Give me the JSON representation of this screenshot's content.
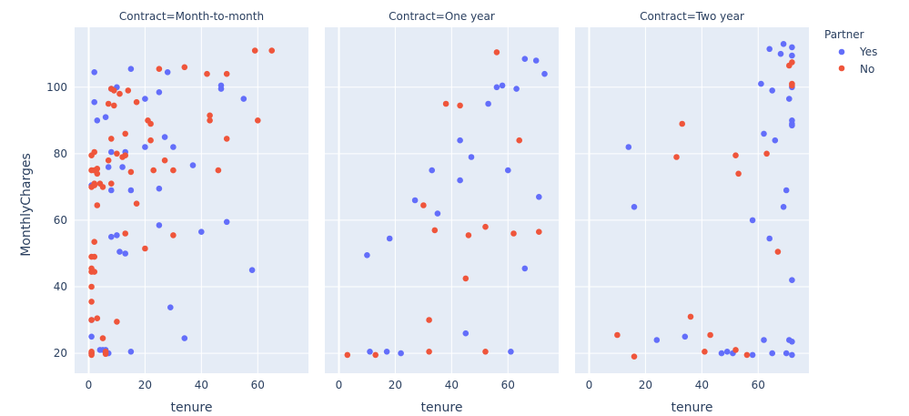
{
  "chart_data": {
    "type": "scatter",
    "xlabel": "tenure",
    "ylabel": "MonthlyCharges",
    "xlim": [
      -5,
      78
    ],
    "ylim": [
      14,
      118
    ],
    "x_ticks": [
      0,
      20,
      40,
      60
    ],
    "y_ticks": [
      20,
      40,
      60,
      80,
      100
    ],
    "grid": true,
    "legend": {
      "title": "Partner",
      "placement": "top-right",
      "entries": [
        {
          "name": "Yes",
          "color": "#636efa"
        },
        {
          "name": "No",
          "color": "#ef553b"
        }
      ]
    },
    "facets": [
      {
        "title": "Contract=Month-to-month",
        "series": [
          {
            "name": "Yes",
            "color": "#636efa",
            "points": [
              [
                1,
                70.5
              ],
              [
                1,
                20
              ],
              [
                1,
                25
              ],
              [
                1,
                30
              ],
              [
                2,
                104.5
              ],
              [
                2,
                95.5
              ],
              [
                3,
                90
              ],
              [
                4,
                21
              ],
              [
                5,
                21
              ],
              [
                6,
                91
              ],
              [
                6,
                21
              ],
              [
                7,
                76
              ],
              [
                7,
                20
              ],
              [
                8,
                99.5
              ],
              [
                8,
                80.5
              ],
              [
                8,
                69
              ],
              [
                8,
                55
              ],
              [
                10,
                100
              ],
              [
                10,
                55.5
              ],
              [
                11,
                50.5
              ],
              [
                12,
                76
              ],
              [
                13,
                80.5
              ],
              [
                13,
                50
              ],
              [
                15,
                105.5
              ],
              [
                15,
                69
              ],
              [
                15,
                20.5
              ],
              [
                20,
                96.5
              ],
              [
                20,
                82
              ],
              [
                25,
                98.5
              ],
              [
                25,
                69.5
              ],
              [
                25,
                58.5
              ],
              [
                27,
                85
              ],
              [
                28,
                104.5
              ],
              [
                29,
                33.8
              ],
              [
                30,
                82
              ],
              [
                34,
                24.5
              ],
              [
                37,
                76.5
              ],
              [
                40,
                56.5
              ],
              [
                47,
                100.5
              ],
              [
                47,
                99.5
              ],
              [
                49,
                59.5
              ],
              [
                55,
                96.5
              ],
              [
                58,
                45
              ]
            ]
          },
          {
            "name": "No",
            "color": "#ef553b",
            "points": [
              [
                1,
                79.5
              ],
              [
                1,
                75
              ],
              [
                1,
                70
              ],
              [
                1,
                49
              ],
              [
                1,
                45.5
              ],
              [
                1,
                44.5
              ],
              [
                1,
                40
              ],
              [
                1,
                35.5
              ],
              [
                1,
                30
              ],
              [
                1,
                20.5
              ],
              [
                1,
                20
              ],
              [
                1,
                19.5
              ],
              [
                2,
                80.5
              ],
              [
                2,
                75
              ],
              [
                2,
                71
              ],
              [
                2,
                70.5
              ],
              [
                2,
                53.5
              ],
              [
                2,
                49
              ],
              [
                2,
                44.5
              ],
              [
                3,
                75.5
              ],
              [
                3,
                74
              ],
              [
                3,
                64.5
              ],
              [
                3,
                30.5
              ],
              [
                4,
                71
              ],
              [
                5,
                70
              ],
              [
                5,
                24.5
              ],
              [
                6,
                20.5
              ],
              [
                6,
                19.8
              ],
              [
                7,
                95
              ],
              [
                7,
                78
              ],
              [
                8,
                99.5
              ],
              [
                8,
                84.5
              ],
              [
                8,
                71
              ],
              [
                9,
                99
              ],
              [
                9,
                94.5
              ],
              [
                10,
                80
              ],
              [
                10,
                29.5
              ],
              [
                11,
                98
              ],
              [
                12,
                79
              ],
              [
                13,
                86
              ],
              [
                13,
                79.5
              ],
              [
                13,
                56
              ],
              [
                14,
                99
              ],
              [
                15,
                74.5
              ],
              [
                17,
                95.5
              ],
              [
                17,
                65
              ],
              [
                20,
                51.5
              ],
              [
                21,
                90
              ],
              [
                22,
                89
              ],
              [
                22,
                84
              ],
              [
                23,
                75
              ],
              [
                25,
                105.5
              ],
              [
                27,
                78
              ],
              [
                30,
                75
              ],
              [
                30,
                55.5
              ],
              [
                34,
                106
              ],
              [
                42,
                104
              ],
              [
                43,
                91.5
              ],
              [
                43,
                90
              ],
              [
                46,
                75
              ],
              [
                49,
                104
              ],
              [
                49,
                84.5
              ],
              [
                59,
                111
              ],
              [
                60,
                90
              ],
              [
                65,
                111
              ]
            ]
          }
        ]
      },
      {
        "title": "Contract=One year",
        "series": [
          {
            "name": "Yes",
            "color": "#636efa",
            "points": [
              [
                10,
                49.5
              ],
              [
                11,
                20.5
              ],
              [
                17,
                20.5
              ],
              [
                18,
                54.5
              ],
              [
                22,
                20
              ],
              [
                27,
                66
              ],
              [
                33,
                75
              ],
              [
                35,
                62
              ],
              [
                43,
                84
              ],
              [
                43,
                72
              ],
              [
                45,
                26
              ],
              [
                47,
                79
              ],
              [
                53,
                95
              ],
              [
                56,
                100
              ],
              [
                58,
                100.5
              ],
              [
                60,
                75
              ],
              [
                61,
                20.5
              ],
              [
                63,
                99.5
              ],
              [
                66,
                45.5
              ],
              [
                66,
                108.5
              ],
              [
                70,
                108
              ],
              [
                71,
                67
              ],
              [
                73,
                104
              ]
            ]
          },
          {
            "name": "No",
            "color": "#ef553b",
            "points": [
              [
                3,
                19.5
              ],
              [
                13,
                19.5
              ],
              [
                30,
                64.5
              ],
              [
                32,
                30
              ],
              [
                32,
                20.5
              ],
              [
                34,
                57
              ],
              [
                38,
                95
              ],
              [
                43,
                94.5
              ],
              [
                45,
                42.5
              ],
              [
                46,
                55.5
              ],
              [
                52,
                58
              ],
              [
                52,
                20.5
              ],
              [
                56,
                110.5
              ],
              [
                62,
                56
              ],
              [
                64,
                84
              ],
              [
                71,
                56.5
              ]
            ]
          }
        ]
      },
      {
        "title": "Contract=Two year",
        "series": [
          {
            "name": "Yes",
            "color": "#636efa",
            "points": [
              [
                14,
                82
              ],
              [
                16,
                64
              ],
              [
                24,
                24
              ],
              [
                34,
                25
              ],
              [
                47,
                20
              ],
              [
                49,
                20.5
              ],
              [
                51,
                20
              ],
              [
                58,
                19.5
              ],
              [
                58,
                60
              ],
              [
                61,
                101
              ],
              [
                62,
                24
              ],
              [
                62,
                86
              ],
              [
                64,
                111.5
              ],
              [
                64,
                54.5
              ],
              [
                65,
                20
              ],
              [
                65,
                99
              ],
              [
                66,
                84
              ],
              [
                68,
                110
              ],
              [
                69,
                113
              ],
              [
                69,
                64
              ],
              [
                70,
                69
              ],
              [
                70,
                20
              ],
              [
                71,
                96.5
              ],
              [
                71,
                24
              ],
              [
                72,
                112
              ],
              [
                72,
                109.5
              ],
              [
                72,
                100
              ],
              [
                72,
                90
              ],
              [
                72,
                89
              ],
              [
                72,
                88.5
              ],
              [
                72,
                42
              ],
              [
                72,
                23.5
              ],
              [
                72,
                19.5
              ]
            ]
          },
          {
            "name": "No",
            "color": "#ef553b",
            "points": [
              [
                10,
                25.5
              ],
              [
                16,
                19
              ],
              [
                31,
                79
              ],
              [
                33,
                89
              ],
              [
                36,
                31
              ],
              [
                41,
                20.5
              ],
              [
                43,
                25.5
              ],
              [
                52,
                21
              ],
              [
                52,
                79.5
              ],
              [
                53,
                74
              ],
              [
                56,
                19.5
              ],
              [
                63,
                80
              ],
              [
                67,
                50.5
              ],
              [
                71,
                106.5
              ],
              [
                72,
                107.5
              ],
              [
                72,
                101
              ],
              [
                72,
                100.5
              ]
            ]
          }
        ]
      }
    ]
  }
}
